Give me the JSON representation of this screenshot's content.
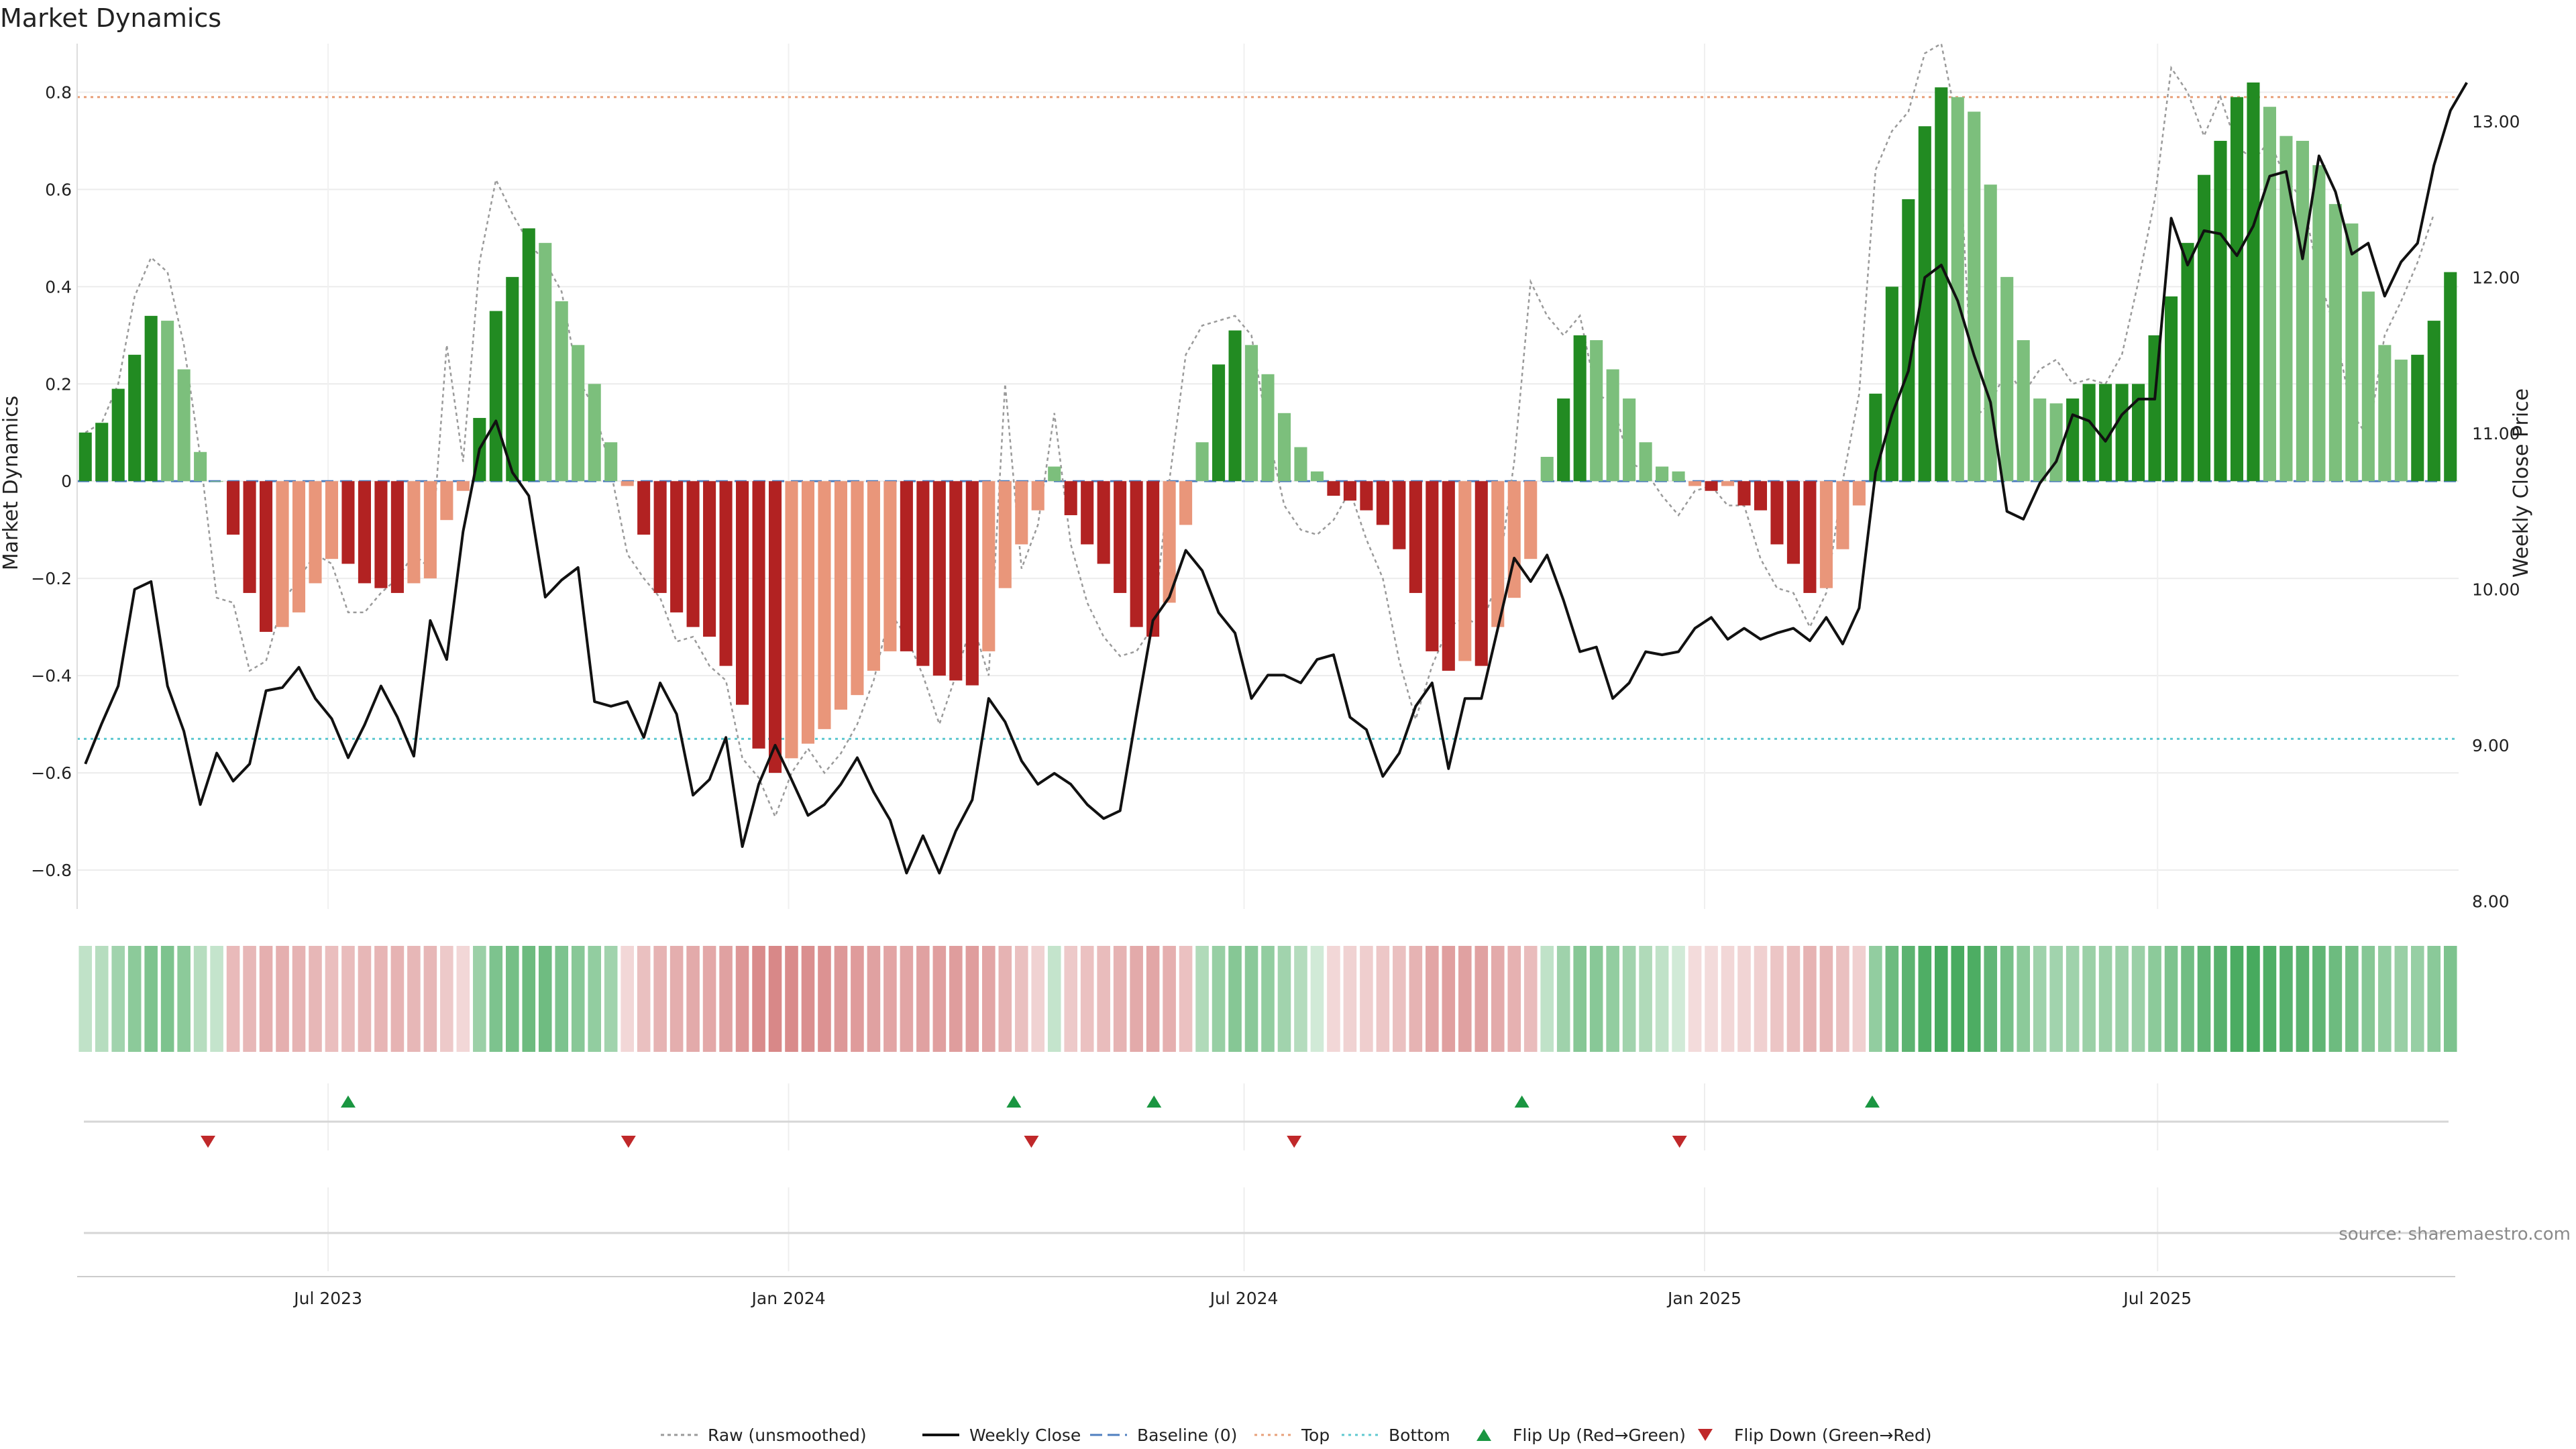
{
  "chart_data": {
    "type": "bar",
    "title": "Market Dynamics",
    "ylabel_left": "Market Dynamics",
    "ylabel_right": "Weekly Close Price",
    "ylim_left": [
      -0.88,
      0.9
    ],
    "ylim_right": [
      7.95,
      13.5
    ],
    "yticks_left": [
      -0.8,
      -0.6,
      -0.4,
      -0.2,
      0,
      0.2,
      0.4,
      0.6,
      0.8
    ],
    "ytick_labels_left": [
      "−0.8",
      "−0.6",
      "−0.4",
      "−0.2",
      "0",
      "0.2",
      "0.4",
      "0.6",
      "0.8"
    ],
    "yticks_right": [
      8.0,
      9.0,
      10.0,
      11.0,
      12.0,
      13.0
    ],
    "ytick_labels_right": [
      "8.00",
      "9.00",
      "10.00",
      "11.00",
      "12.00",
      "13.00"
    ],
    "date_start": "2023-03-26",
    "date_end": "2025-10-26",
    "x_ticks": [
      {
        "date": "2023-07-01",
        "label": "Jul 2023"
      },
      {
        "date": "2024-01-01",
        "label": "Jan 2024"
      },
      {
        "date": "2024-07-01",
        "label": "Jul 2024"
      },
      {
        "date": "2025-01-01",
        "label": "Jan 2025"
      },
      {
        "date": "2025-07-01",
        "label": "Jul 2025"
      }
    ],
    "top_line": 0.79,
    "bottom_line": -0.53,
    "baseline": 0,
    "colors": {
      "strong_green": "#228b22",
      "light_green": "#7cbf7c",
      "strong_red": "#b22222",
      "light_red": "#e9967a",
      "weekly_close": "#111111",
      "raw": "#9a9a9a",
      "baseline": "#4f7fbf",
      "top": "#e8a07a",
      "bottom": "#5fc8d0",
      "flip_up": "#1a9641",
      "flip_down": "#c0282a"
    },
    "dynamics": [
      0.1,
      0.12,
      0.19,
      0.26,
      0.34,
      0.33,
      0.23,
      0.06,
      0.0,
      -0.11,
      -0.23,
      -0.31,
      -0.3,
      -0.27,
      -0.21,
      -0.16,
      -0.17,
      -0.21,
      -0.22,
      -0.23,
      -0.21,
      -0.2,
      -0.08,
      -0.02,
      0.13,
      0.35,
      0.42,
      0.52,
      0.49,
      0.37,
      0.28,
      0.2,
      0.08,
      -0.01,
      -0.11,
      -0.23,
      -0.27,
      -0.3,
      -0.32,
      -0.38,
      -0.46,
      -0.55,
      -0.6,
      -0.57,
      -0.54,
      -0.51,
      -0.47,
      -0.44,
      -0.39,
      -0.35,
      -0.35,
      -0.38,
      -0.4,
      -0.41,
      -0.42,
      -0.35,
      -0.22,
      -0.13,
      -0.06,
      0.03,
      -0.07,
      -0.13,
      -0.17,
      -0.23,
      -0.3,
      -0.32,
      -0.25,
      -0.09,
      0.08,
      0.24,
      0.31,
      0.28,
      0.22,
      0.14,
      0.07,
      0.02,
      -0.03,
      -0.04,
      -0.06,
      -0.09,
      -0.14,
      -0.23,
      -0.35,
      -0.39,
      -0.37,
      -0.38,
      -0.3,
      -0.24,
      -0.16,
      0.05,
      0.17,
      0.3,
      0.29,
      0.23,
      0.17,
      0.08,
      0.03,
      0.02,
      -0.01,
      -0.02,
      -0.01,
      -0.05,
      -0.06,
      -0.13,
      -0.17,
      -0.23,
      -0.22,
      -0.14,
      -0.05,
      0.18,
      0.4,
      0.58,
      0.73,
      0.81,
      0.79,
      0.76,
      0.61,
      0.42,
      0.29,
      0.17,
      0.16,
      0.17,
      0.2,
      0.2,
      0.2,
      0.2,
      0.3,
      0.38,
      0.49,
      0.63,
      0.7,
      0.79,
      0.82,
      0.77,
      0.71,
      0.7,
      0.65,
      0.57,
      0.53,
      0.39,
      0.28,
      0.25,
      0.26,
      0.33,
      0.43
    ],
    "raw": [
      0.1,
      0.12,
      0.2,
      0.38,
      0.46,
      0.43,
      0.28,
      0.05,
      -0.24,
      -0.25,
      -0.39,
      -0.37,
      -0.25,
      -0.2,
      -0.15,
      -0.17,
      -0.27,
      -0.27,
      -0.23,
      -0.2,
      -0.15,
      -0.18,
      0.28,
      0.04,
      0.45,
      0.62,
      0.55,
      0.49,
      0.45,
      0.39,
      0.21,
      0.15,
      0.02,
      -0.15,
      -0.2,
      -0.24,
      -0.33,
      -0.32,
      -0.38,
      -0.41,
      -0.57,
      -0.61,
      -0.69,
      -0.6,
      -0.55,
      -0.6,
      -0.56,
      -0.5,
      -0.41,
      -0.27,
      -0.32,
      -0.4,
      -0.5,
      -0.4,
      -0.29,
      -0.4,
      0.2,
      -0.18,
      -0.09,
      0.14,
      -0.13,
      -0.25,
      -0.32,
      -0.36,
      -0.35,
      -0.3,
      0.0,
      0.26,
      0.32,
      0.33,
      0.34,
      0.3,
      0.1,
      -0.05,
      -0.1,
      -0.11,
      -0.08,
      -0.02,
      -0.12,
      -0.2,
      -0.37,
      -0.49,
      -0.38,
      -0.3,
      -0.28,
      -0.3,
      -0.2,
      0.04,
      0.41,
      0.34,
      0.3,
      0.34,
      0.18,
      0.16,
      0.04,
      0.02,
      -0.03,
      -0.07,
      -0.02,
      -0.01,
      -0.05,
      -0.05,
      -0.16,
      -0.22,
      -0.23,
      -0.3,
      -0.23,
      0.0,
      0.18,
      0.64,
      0.72,
      0.76,
      0.88,
      0.9,
      0.73,
      0.13,
      0.16,
      0.23,
      0.18,
      0.23,
      0.25,
      0.2,
      0.21,
      0.2,
      0.26,
      0.41,
      0.58,
      0.85,
      0.8,
      0.71,
      0.79,
      0.69,
      0.66,
      0.7,
      0.62,
      0.58,
      0.42,
      0.31,
      0.14,
      0.09,
      0.3,
      0.37,
      0.45,
      0.55
    ],
    "weekly_close": [
      8.88,
      9.14,
      9.38,
      10.0,
      10.05,
      9.38,
      9.09,
      8.62,
      8.95,
      8.77,
      8.88,
      9.35,
      9.37,
      9.5,
      9.3,
      9.17,
      8.92,
      9.13,
      9.38,
      9.18,
      8.93,
      9.8,
      9.55,
      10.37,
      10.9,
      11.08,
      10.75,
      10.6,
      9.95,
      10.06,
      10.14,
      9.28,
      9.25,
      9.28,
      9.05,
      9.4,
      9.2,
      8.68,
      8.78,
      9.05,
      8.35,
      8.75,
      9.0,
      8.78,
      8.55,
      8.62,
      8.75,
      8.92,
      8.7,
      8.52,
      8.18,
      8.42,
      8.18,
      8.45,
      8.65,
      9.3,
      9.15,
      8.9,
      8.75,
      8.82,
      8.75,
      8.62,
      8.53,
      8.58,
      9.2,
      9.8,
      9.95,
      10.25,
      10.12,
      9.85,
      9.72,
      9.3,
      9.45,
      9.45,
      9.4,
      9.55,
      9.58,
      9.18,
      9.1,
      8.8,
      8.95,
      9.25,
      9.4,
      8.85,
      9.3,
      9.3,
      9.75,
      10.2,
      10.05,
      10.22,
      9.93,
      9.6,
      9.63,
      9.3,
      9.4,
      9.6,
      9.58,
      9.6,
      9.75,
      9.82,
      9.68,
      9.75,
      9.68,
      9.72,
      9.75,
      9.67,
      9.82,
      9.65,
      9.88,
      10.75,
      11.12,
      11.4,
      12.0,
      12.08,
      11.85,
      11.5,
      11.2,
      10.5,
      10.45,
      10.68,
      10.82,
      11.12,
      11.08,
      10.95,
      11.12,
      11.22,
      11.22,
      12.38,
      12.08,
      12.3,
      12.28,
      12.14,
      12.33,
      12.65,
      12.68,
      12.12,
      12.78,
      12.55,
      12.15,
      12.22,
      11.88,
      12.1,
      12.22,
      12.72,
      13.07,
      13.25
    ],
    "heat_strip_levels": [
      0.3,
      0.35,
      0.45,
      0.55,
      0.62,
      0.62,
      0.55,
      0.35,
      0.28,
      0.38,
      0.4,
      0.44,
      0.44,
      0.42,
      0.4,
      0.36,
      0.37,
      0.4,
      0.41,
      0.42,
      0.4,
      0.4,
      0.3,
      0.22,
      0.48,
      0.62,
      0.66,
      0.7,
      0.69,
      0.62,
      0.57,
      0.52,
      0.45,
      0.22,
      0.35,
      0.42,
      0.45,
      0.47,
      0.48,
      0.52,
      0.58,
      0.64,
      0.66,
      0.64,
      0.62,
      0.6,
      0.57,
      0.55,
      0.52,
      0.5,
      0.5,
      0.52,
      0.53,
      0.54,
      0.54,
      0.5,
      0.42,
      0.35,
      0.25,
      0.28,
      0.3,
      0.34,
      0.37,
      0.42,
      0.47,
      0.49,
      0.44,
      0.34,
      0.38,
      0.5,
      0.58,
      0.56,
      0.52,
      0.45,
      0.36,
      0.22,
      0.22,
      0.25,
      0.27,
      0.31,
      0.35,
      0.42,
      0.5,
      0.53,
      0.52,
      0.52,
      0.47,
      0.43,
      0.37,
      0.3,
      0.46,
      0.58,
      0.57,
      0.52,
      0.45,
      0.38,
      0.3,
      0.22,
      0.2,
      0.2,
      0.22,
      0.24,
      0.26,
      0.32,
      0.36,
      0.42,
      0.41,
      0.35,
      0.26,
      0.52,
      0.7,
      0.78,
      0.84,
      0.88,
      0.87,
      0.85,
      0.75,
      0.65,
      0.55,
      0.46,
      0.45,
      0.46,
      0.48,
      0.48,
      0.48,
      0.48,
      0.55,
      0.62,
      0.68,
      0.76,
      0.8,
      0.86,
      0.88,
      0.84,
      0.8,
      0.79,
      0.76,
      0.7,
      0.66,
      0.58,
      0.52,
      0.49,
      0.5,
      0.56,
      0.62
    ],
    "flips_up": [
      "2023-07-09",
      "2024-03-31",
      "2024-05-26",
      "2024-10-20",
      "2025-03-09"
    ],
    "flips_down": [
      "2023-05-14",
      "2023-10-29",
      "2024-04-07",
      "2024-07-21",
      "2024-12-22"
    ],
    "legend": [
      {
        "key": "raw",
        "label": "Raw (unsmoothed)"
      },
      {
        "key": "close",
        "label": "Weekly Close"
      },
      {
        "key": "baseline",
        "label": "Baseline (0)"
      },
      {
        "key": "top",
        "label": "Top"
      },
      {
        "key": "bottom",
        "label": "Bottom"
      },
      {
        "key": "flip_up",
        "label": "Flip Up (Red→Green)"
      },
      {
        "key": "flip_down",
        "label": "Flip Down (Green→Red)"
      }
    ],
    "legend_position": "bottom-center",
    "grid": true,
    "source": "source: sharemaestro.com"
  }
}
